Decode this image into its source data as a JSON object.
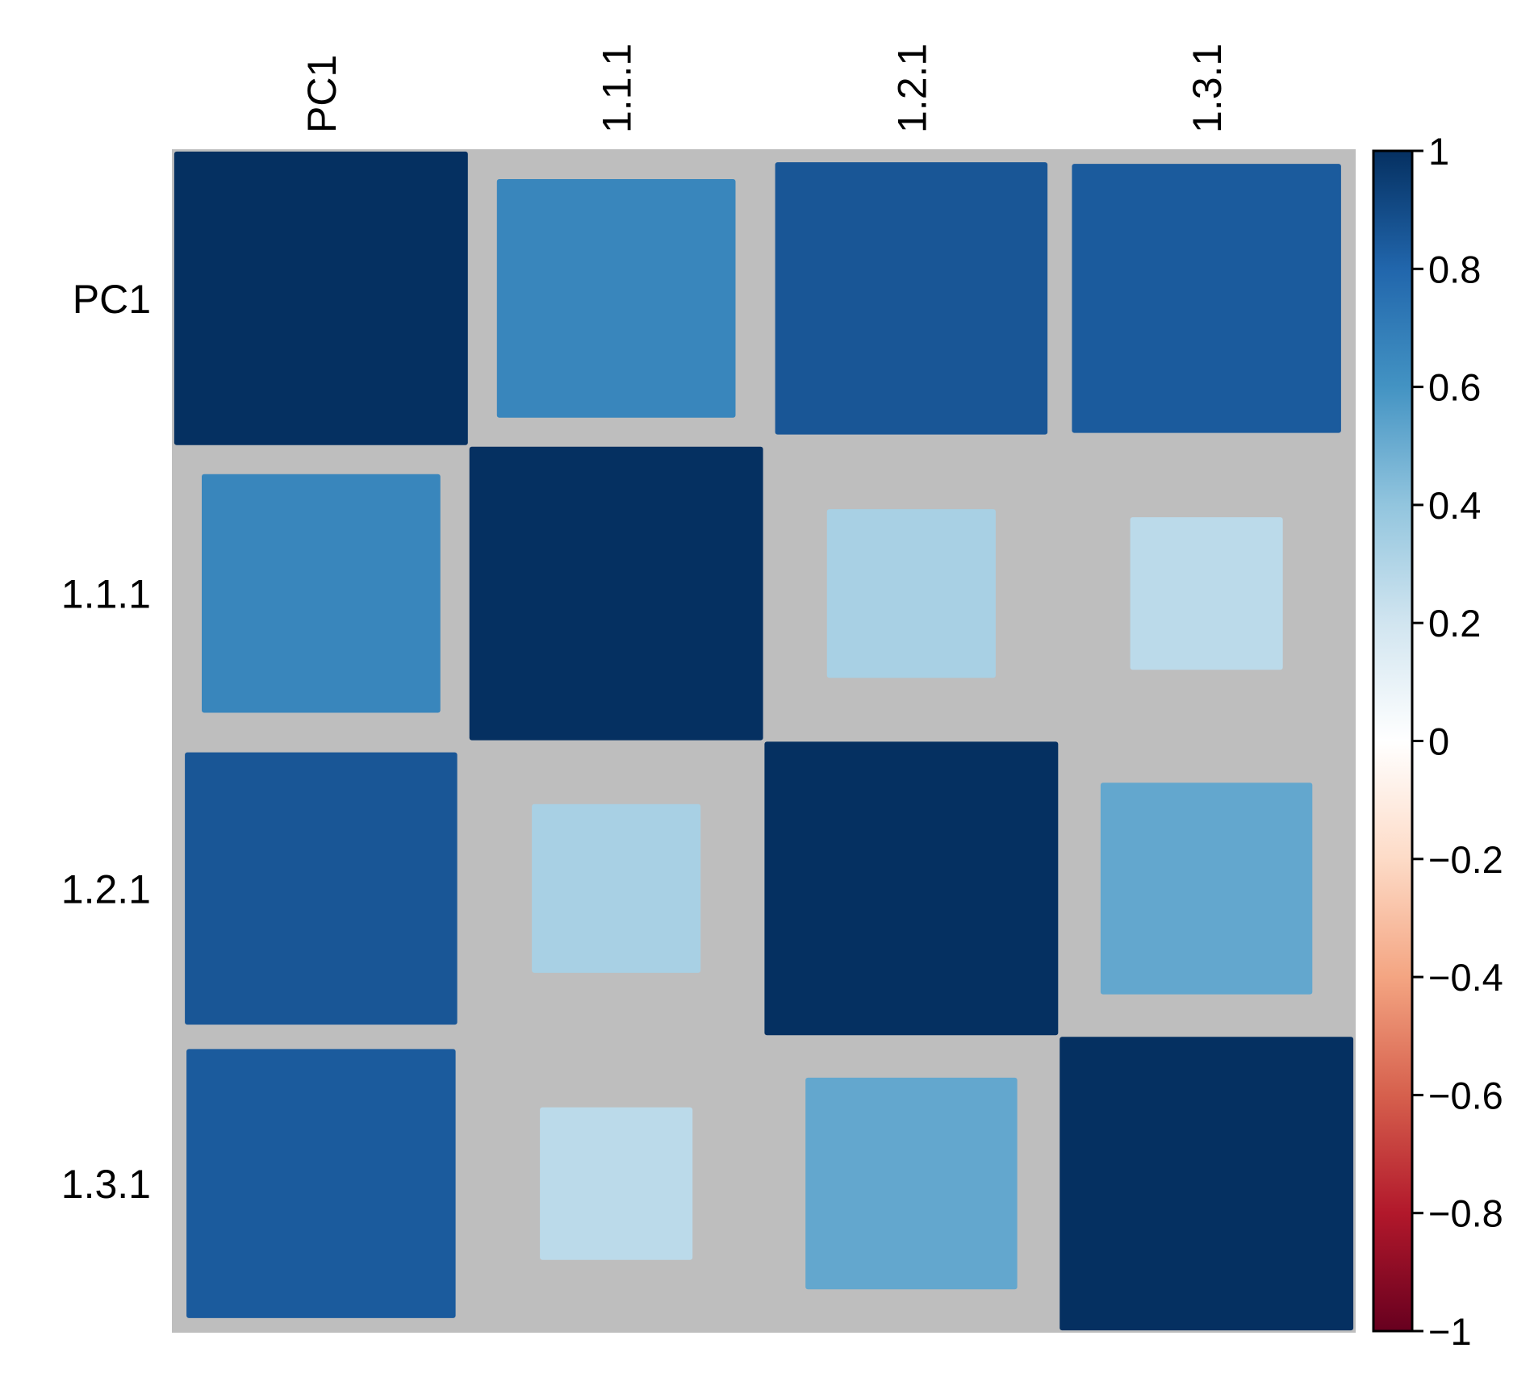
{
  "chart_data": {
    "type": "heatmap",
    "subtype": "correlation-matrix",
    "variables": [
      "PC1",
      "1.1.1",
      "1.2.1",
      "1.3.1"
    ],
    "matrix": [
      [
        1.0,
        0.66,
        0.86,
        0.84
      ],
      [
        0.66,
        1.0,
        0.33,
        0.27
      ],
      [
        0.86,
        0.33,
        1.0,
        0.52
      ],
      [
        0.84,
        0.27,
        0.52,
        1.0
      ]
    ],
    "cell_glyph": "square",
    "glyph_size_encodes": "abs(correlation)",
    "background_color": "#bebebe",
    "colorbar": {
      "range": [
        -1,
        1
      ],
      "ticks": [
        "1",
        "0.8",
        "0.6",
        "0.4",
        "0.2",
        "0",
        "−0.2",
        "−0.4",
        "−0.6",
        "−0.8",
        "−1"
      ],
      "tick_values": [
        1,
        0.8,
        0.6,
        0.4,
        0.2,
        0,
        -0.2,
        -0.4,
        -0.6,
        -0.8,
        -1
      ],
      "stops": [
        {
          "value": -1.0,
          "color": "#67001f"
        },
        {
          "value": -0.8,
          "color": "#b2182b"
        },
        {
          "value": -0.6,
          "color": "#d6604d"
        },
        {
          "value": -0.4,
          "color": "#f4a582"
        },
        {
          "value": -0.2,
          "color": "#fddbc7"
        },
        {
          "value": 0.0,
          "color": "#ffffff"
        },
        {
          "value": 0.2,
          "color": "#d1e5f0"
        },
        {
          "value": 0.4,
          "color": "#92c5de"
        },
        {
          "value": 0.6,
          "color": "#4393c3"
        },
        {
          "value": 0.8,
          "color": "#2166ac"
        },
        {
          "value": 1.0,
          "color": "#053061"
        }
      ]
    },
    "title": "",
    "xlabel": "",
    "ylabel": ""
  }
}
